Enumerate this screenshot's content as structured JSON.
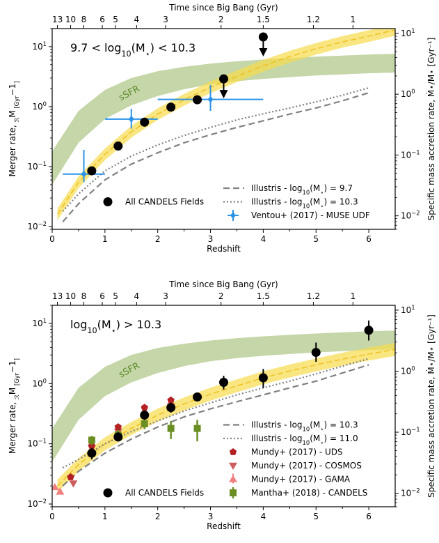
{
  "colors": {
    "gold": "#f5d31a",
    "gold_band": "#f7dc4a",
    "green_band": "#c5d6a8",
    "sfr_text": "#5e8a2a",
    "illustris": "#808080",
    "ventou": "#2a93e8",
    "mundy_uds": "#b22222",
    "mundy_cosmos": "#cd5c5c",
    "mundy_gama": "#f08080",
    "mantha": "#6b8e23",
    "candels": "#000000"
  },
  "chart_data": [
    {
      "type": "scatter",
      "id": "top",
      "title": "9.7 < log10(M*) < 10.3",
      "title_parts": [
        "9.7 < log",
        "10",
        "(M",
        "⋆",
        ") < 10.3"
      ],
      "xlabel": "Redshift",
      "ylabel": "Merger rate, R_M [Gyr⁻¹]",
      "ylabel_parts": [
        "Merger rate, ",
        "ℛ",
        "M",
        " [Gyr",
        "−1",
        "]"
      ],
      "y2label": "Specific mass accretion rate, Ṁ⋆/M⋆ [Gyr⁻¹]",
      "toplabel": "Time since Big Bang (Gyr)",
      "xlim": [
        0,
        6.5
      ],
      "ylim": [
        0.009,
        20
      ],
      "yscale": "log",
      "xticks": [
        0,
        1,
        2,
        3,
        4,
        5,
        6
      ],
      "yticks": [
        0.01,
        0.1,
        1,
        10
      ],
      "ytick_labels": [
        [
          "10",
          "−2"
        ],
        [
          "10",
          "−1"
        ],
        [
          "10",
          "0"
        ],
        [
          "10",
          "1"
        ]
      ],
      "y2lim": [
        0.006,
        12
      ],
      "y2ticks": [
        0.01,
        0.1,
        1,
        10
      ],
      "y2tick_labels": [
        [
          "10",
          "−2"
        ],
        [
          "10",
          "−1"
        ],
        [
          "10",
          "0"
        ],
        [
          "10",
          "1"
        ]
      ],
      "top_ticks": [
        "13",
        "10",
        "8",
        "6",
        "5",
        "4",
        "3",
        "2",
        "1.5",
        "1.2",
        "1"
      ],
      "top_ticks_z": [
        0.1,
        0.35,
        0.6,
        0.95,
        1.2,
        1.6,
        2.15,
        3.2,
        4.0,
        4.95,
        5.7
      ],
      "sfr_label": "sSFR",
      "sfr_label_at": {
        "x": 1.3,
        "y": 1.25
      },
      "series": [
        {
          "name": "All CANDELS Fields",
          "kind": "points",
          "x": [
            0.75,
            1.25,
            1.75,
            2.25,
            2.75,
            3.25,
            4.0
          ],
          "y": [
            0.085,
            0.22,
            0.55,
            0.98,
            1.3,
            2.9,
            14.5
          ],
          "upper_limit": [
            false,
            false,
            false,
            false,
            false,
            true,
            true
          ]
        },
        {
          "name": "Ventou+ (2017) - MUSE UDF",
          "kind": "errorpoints",
          "x": [
            0.6,
            1.5,
            3.0
          ],
          "y": [
            0.075,
            0.62,
            1.32
          ],
          "xerr": [
            0.4,
            0.5,
            1.0
          ],
          "yerr_low": [
            0.055,
            0.43,
            0.85
          ],
          "yerr_high": [
            0.19,
            0.92,
            2.3
          ]
        },
        {
          "name": "Illustris - log10(M*) = 9.7",
          "kind": "dashed",
          "name_parts": [
            "Illustris - log",
            "10",
            "(M",
            "⋆",
            ") = 9.7"
          ],
          "x": [
            0.2,
            0.5,
            1.0,
            1.5,
            2.0,
            2.5,
            3.0,
            3.5,
            4.0,
            4.5,
            5.0,
            5.5,
            6.0
          ],
          "y": [
            0.012,
            0.024,
            0.06,
            0.11,
            0.17,
            0.25,
            0.34,
            0.45,
            0.58,
            0.75,
            0.95,
            1.25,
            1.7
          ]
        },
        {
          "name": "Illustris - log10(M*) = 10.3",
          "kind": "dotted",
          "name_parts": [
            "Illustris - log",
            "10",
            "(M",
            "⋆",
            ") = 10.3"
          ],
          "x": [
            0.2,
            0.5,
            1.0,
            1.5,
            2.0,
            2.5,
            3.0,
            3.5,
            4.0,
            4.5,
            5.0,
            5.5,
            6.0
          ],
          "y": [
            0.018,
            0.035,
            0.085,
            0.15,
            0.23,
            0.33,
            0.45,
            0.6,
            0.76,
            0.95,
            1.2,
            1.55,
            2.05
          ]
        },
        {
          "name": "gold_fit",
          "kind": "goldband",
          "x": [
            0.1,
            0.5,
            1.0,
            1.5,
            2.0,
            2.5,
            3.0,
            3.5,
            4.0,
            4.5,
            5.0,
            5.5,
            6.0,
            6.5
          ],
          "y": [
            0.016,
            0.055,
            0.16,
            0.38,
            0.75,
            1.3,
            2.1,
            3.2,
            4.8,
            6.8,
            9.2,
            12.0,
            15.0,
            19.0
          ],
          "ylow_factor": 0.8,
          "yhigh_factor": 1.25
        },
        {
          "name": "sSFR",
          "kind": "greenband",
          "x": [
            0.0,
            0.5,
            1.0,
            1.5,
            2.0,
            2.5,
            3.0,
            3.5,
            4.0,
            4.5,
            5.0,
            5.5,
            6.0,
            6.5
          ],
          "ylow": [
            0.05,
            0.25,
            0.62,
            1.05,
            1.5,
            1.95,
            2.35,
            2.65,
            2.9,
            3.1,
            3.3,
            3.45,
            3.6,
            3.7
          ],
          "yhigh": [
            0.18,
            0.85,
            1.9,
            3.0,
            3.9,
            4.6,
            5.2,
            5.7,
            6.1,
            6.45,
            6.8,
            7.1,
            7.4,
            7.6
          ]
        }
      ],
      "legend": [
        {
          "label": "Illustris - log10(M*) = 9.7",
          "label_parts": [
            "Illustris - log",
            "10",
            "(M",
            "⋆",
            ") = 9.7"
          ],
          "marker": "dashed"
        },
        {
          "label": "Illustris - log10(M*) = 10.3",
          "label_parts": [
            "Illustris - log",
            "10",
            "(M",
            "⋆",
            ") = 10.3"
          ],
          "marker": "dotted"
        },
        {
          "label": "Ventou+ (2017) - MUSE UDF",
          "marker": "ventou"
        }
      ],
      "extra_legend": {
        "label": "All CANDELS Fields",
        "marker": "candels"
      }
    },
    {
      "type": "scatter",
      "id": "bottom",
      "title": "log10(M*) > 10.3",
      "title_parts": [
        "log",
        "10",
        "(M",
        "⋆",
        ") > 10.3"
      ],
      "xlabel": "Redshift",
      "ylabel": "Merger rate, R_M [Gyr⁻¹]",
      "ylabel_parts": [
        "Merger rate, ",
        "ℛ",
        "M",
        " [Gyr",
        "−1",
        "]"
      ],
      "y2label": "Specific mass accretion rate, Ṁ⋆/M⋆ [Gyr⁻¹]",
      "toplabel": "Time since Big Bang (Gyr)",
      "xlim": [
        0,
        6.5
      ],
      "ylim": [
        0.009,
        20
      ],
      "yscale": "log",
      "xticks": [
        0,
        1,
        2,
        3,
        4,
        5,
        6
      ],
      "yticks": [
        0.01,
        0.1,
        1,
        10
      ],
      "ytick_labels": [
        [
          "10",
          "−2"
        ],
        [
          "10",
          "−1"
        ],
        [
          "10",
          "0"
        ],
        [
          "10",
          "1"
        ]
      ],
      "y2lim": [
        0.006,
        12
      ],
      "y2ticks": [
        0.01,
        0.1,
        1,
        10
      ],
      "y2tick_labels": [
        [
          "10",
          "−2"
        ],
        [
          "10",
          "−1"
        ],
        [
          "10",
          "0"
        ],
        [
          "10",
          "1"
        ]
      ],
      "top_ticks": [
        "13",
        "10",
        "8",
        "6",
        "5",
        "4",
        "3",
        "2",
        "1.5",
        "1.2",
        "1"
      ],
      "top_ticks_z": [
        0.1,
        0.35,
        0.6,
        0.95,
        1.2,
        1.6,
        2.15,
        3.2,
        4.0,
        4.95,
        5.7
      ],
      "sfr_label": "sSFR",
      "sfr_label_at": {
        "x": 1.3,
        "y": 1.25
      },
      "series": [
        {
          "name": "All CANDELS Fields",
          "kind": "points",
          "x": [
            0.75,
            1.25,
            1.75,
            2.25,
            2.75,
            3.25,
            4.0,
            5.0,
            6.0
          ],
          "y": [
            0.07,
            0.13,
            0.3,
            0.4,
            0.6,
            1.05,
            1.25,
            3.3,
            7.7
          ],
          "yerr_low": [
            0.015,
            0.02,
            0.05,
            0.07,
            0.08,
            0.25,
            0.4,
            1.0,
            2.5
          ],
          "yerr_high": [
            0.015,
            0.025,
            0.06,
            0.08,
            0.09,
            0.3,
            0.5,
            1.5,
            3.5
          ],
          "upper_limit": [
            false,
            false,
            false,
            false,
            false,
            false,
            false,
            false,
            false
          ]
        },
        {
          "name": "Mundy+ (2017) - UDS",
          "kind": "pentagon",
          "x": [
            0.35,
            0.75,
            1.25,
            1.75,
            2.25
          ],
          "y": [
            0.028,
            0.092,
            0.19,
            0.4,
            0.53
          ]
        },
        {
          "name": "Mundy+ (2017) - COSMOS",
          "kind": "triangle_down",
          "x": [
            0.4,
            0.75,
            1.25,
            1.75,
            2.25
          ],
          "y": [
            0.022,
            0.085,
            0.16,
            0.28,
            0.42
          ]
        },
        {
          "name": "Mundy+ (2017) - GAMA",
          "kind": "triangle_up",
          "x": [
            0.05,
            0.15
          ],
          "y": [
            0.019,
            0.016
          ]
        },
        {
          "name": "Mantha+ (2018) - CANDELS",
          "kind": "square",
          "x": [
            0.75,
            1.25,
            1.75,
            2.25,
            2.75
          ],
          "y": [
            0.115,
            0.14,
            0.215,
            0.18,
            0.18
          ],
          "yerr_low": [
            0.02,
            0.03,
            0.04,
            0.06,
            0.07
          ],
          "yerr_high": [
            0.02,
            0.03,
            0.05,
            0.06,
            0.07
          ]
        },
        {
          "name": "Illustris - log10(M*) = 10.3",
          "kind": "dashed",
          "name_parts": [
            "Illustris - log",
            "10",
            "(M",
            "⋆",
            ") = 10.3"
          ],
          "x": [
            0.2,
            0.5,
            1.0,
            1.5,
            2.0,
            2.5,
            3.0,
            3.5,
            4.0,
            4.5,
            5.0,
            5.5,
            6.0
          ],
          "y": [
            0.02,
            0.035,
            0.07,
            0.12,
            0.19,
            0.28,
            0.38,
            0.5,
            0.65,
            0.85,
            1.1,
            1.5,
            2.05
          ]
        },
        {
          "name": "Illustris - log10(M*) = 11.0",
          "kind": "dotted",
          "name_parts": [
            "Illustris - log",
            "10",
            "(M",
            "⋆",
            ") = 11.0"
          ],
          "x": [
            0.2,
            0.5,
            1.0,
            1.5,
            2.0,
            2.5,
            3.0,
            3.5,
            4.0,
            4.5,
            5.0,
            5.5,
            6.0
          ],
          "y": [
            0.04,
            0.055,
            0.1,
            0.16,
            0.24,
            0.35,
            0.48,
            0.65,
            0.85,
            1.1,
            1.45,
            1.95,
            2.6
          ]
        },
        {
          "name": "gold_fit",
          "kind": "goldband",
          "x": [
            0.1,
            0.5,
            1.0,
            1.5,
            2.0,
            2.5,
            3.0,
            3.5,
            4.0,
            4.5,
            5.0,
            5.5,
            6.0,
            6.5
          ],
          "y": [
            0.02,
            0.045,
            0.1,
            0.18,
            0.3,
            0.46,
            0.67,
            0.92,
            1.25,
            1.62,
            2.05,
            2.55,
            3.1,
            3.7
          ],
          "ylow_factor": 0.78,
          "yhigh_factor": 1.28
        },
        {
          "name": "sSFR",
          "kind": "greenband",
          "x": [
            0.0,
            0.5,
            1.0,
            1.5,
            2.0,
            2.5,
            3.0,
            3.5,
            4.0,
            4.5,
            5.0,
            5.5,
            6.0,
            6.5
          ],
          "ylow": [
            0.05,
            0.25,
            0.62,
            1.05,
            1.5,
            1.95,
            2.35,
            2.65,
            2.9,
            3.1,
            3.3,
            3.45,
            3.6,
            3.7
          ],
          "yhigh": [
            0.18,
            0.85,
            1.9,
            3.0,
            3.9,
            4.6,
            5.2,
            5.7,
            6.1,
            6.45,
            6.8,
            7.1,
            7.4,
            7.6
          ]
        }
      ],
      "legend": [
        {
          "label": "Illustris - log10(M*) = 10.3",
          "label_parts": [
            "Illustris - log",
            "10",
            "(M",
            "⋆",
            ") = 10.3"
          ],
          "marker": "dashed"
        },
        {
          "label": "Illustris - log10(M*) = 11.0",
          "label_parts": [
            "Illustris - log",
            "10",
            "(M",
            "⋆",
            ") = 11.0"
          ],
          "marker": "dotted"
        },
        {
          "label": "Mundy+ (2017) - UDS",
          "marker": "pentagon"
        },
        {
          "label": "Mundy+ (2017) - COSMOS",
          "marker": "triangle_down"
        },
        {
          "label": "Mundy+ (2017) - GAMA",
          "marker": "triangle_up"
        },
        {
          "label": "Mantha+ (2018) - CANDELS",
          "marker": "square"
        }
      ],
      "extra_legend": {
        "label": "All CANDELS Fields",
        "marker": "candels"
      }
    }
  ]
}
